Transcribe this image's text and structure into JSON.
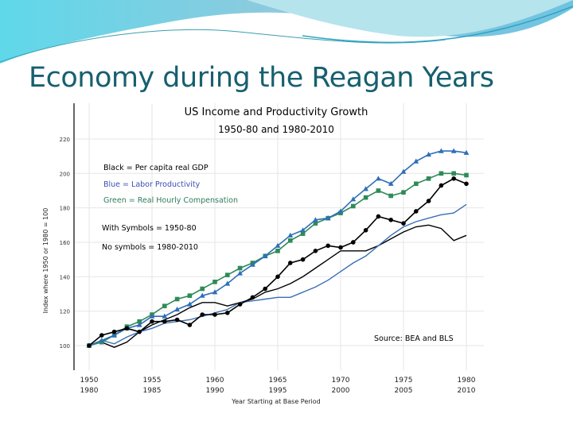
{
  "slide": {
    "title": "Economy during the Reagan Years",
    "title_color": "#17606f",
    "wave_colors": [
      "#5fd3e6",
      "#9fdbe8",
      "#7cc6dd"
    ]
  },
  "chart_data": {
    "type": "line",
    "title": "US Income and Productivity Growth",
    "subtitle": "1950-80 and 1980-2010",
    "xlabel": "Year Starting at Base Period",
    "ylabel": "Index where 1950 or 1980 = 100",
    "x_tick_labels_top": [
      "1950",
      "1955",
      "1960",
      "1965",
      "1970",
      "1975",
      "1980"
    ],
    "x_tick_labels_bottom": [
      "1980",
      "1985",
      "1990",
      "1995",
      "2000",
      "2005",
      "2010"
    ],
    "y_ticks": [
      100,
      120,
      140,
      160,
      180,
      200,
      220
    ],
    "ylim": [
      82,
      226
    ],
    "xlim_years_from_base": [
      -1.5,
      31.5
    ],
    "grid": true,
    "legend_notes": [
      {
        "text": "Black = Per capita real GDP",
        "color": "#000000"
      },
      {
        "text": "Blue = Labor Productivity",
        "color": "#3b4fb3"
      },
      {
        "text": "Green = Real Hourly Compensation",
        "color": "#2e7d5b"
      },
      {
        "text": "With Symbols = 1950-80",
        "color": "#000000"
      },
      {
        "text": "No symbols = 1980-2010",
        "color": "#000000"
      }
    ],
    "annotation": "Source:  BEA and BLS",
    "x": [
      1950,
      1951,
      1952,
      1953,
      1954,
      1955,
      1956,
      1957,
      1958,
      1959,
      1960,
      1961,
      1962,
      1963,
      1964,
      1965,
      1966,
      1967,
      1968,
      1969,
      1970,
      1971,
      1972,
      1973,
      1974,
      1975,
      1976,
      1977,
      1978,
      1979,
      1980
    ],
    "series": [
      {
        "period": "1980-2010",
        "measure": "Per capita real GDP",
        "color": "#000000",
        "marker": "none",
        "values": [
          100,
          102,
          99,
          102,
          108,
          112,
          115,
          118,
          122,
          125,
          125,
          123,
          125,
          127,
          131,
          133,
          136,
          140,
          145,
          150,
          155,
          155,
          155,
          158,
          162,
          166,
          169,
          170,
          168,
          161,
          164
        ]
      },
      {
        "period": "1980-2010",
        "measure": "Labor Productivity",
        "color": "#3a6fb5",
        "marker": "none",
        "values": [
          100,
          103,
          101,
          105,
          108,
          110,
          113,
          114,
          115,
          117,
          119,
          121,
          125,
          126,
          127,
          128,
          128,
          131,
          134,
          138,
          143,
          148,
          152,
          158,
          164,
          169,
          172,
          174,
          176,
          177,
          182
        ]
      },
      {
        "period": "1950-80",
        "measure": "Real Hourly Compensation",
        "color": "#2e8b57",
        "marker": "square",
        "values": [
          100,
          102,
          106,
          111,
          114,
          118,
          123,
          127,
          129,
          133,
          137,
          141,
          145,
          148,
          152,
          155,
          161,
          165,
          171,
          174,
          177,
          181,
          186,
          190,
          187,
          189,
          194,
          197,
          200,
          200,
          199
        ]
      },
      {
        "period": "1950-80",
        "measure": "Labor Productivity",
        "color": "#2f6fb8",
        "marker": "triangle",
        "values": [
          100,
          103,
          106,
          110,
          112,
          117,
          117,
          121,
          124,
          129,
          131,
          136,
          142,
          147,
          152,
          158,
          164,
          167,
          173,
          174,
          178,
          185,
          191,
          197,
          194,
          201,
          207,
          211,
          213,
          213,
          212
        ]
      },
      {
        "period": "1950-80",
        "measure": "Per capita real GDP",
        "color": "#000000",
        "marker": "circle",
        "values": [
          100,
          106,
          108,
          110,
          108,
          114,
          114,
          115,
          112,
          118,
          118,
          119,
          124,
          128,
          133,
          140,
          148,
          150,
          155,
          158,
          157,
          160,
          167,
          175,
          173,
          171,
          178,
          184,
          193,
          197,
          194
        ]
      }
    ]
  }
}
